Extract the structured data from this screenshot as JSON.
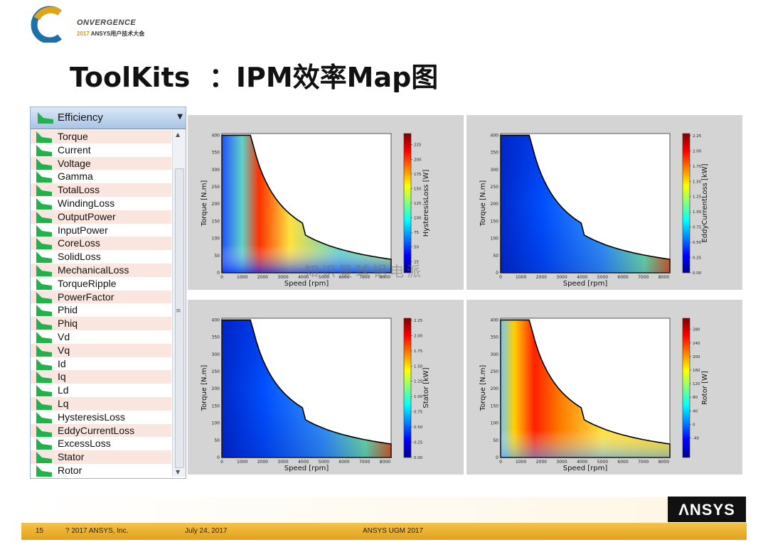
{
  "logo": {
    "name": "ONVERGENCE",
    "sub_year": "2017",
    "sub_text": " ANSYS用户技术大会"
  },
  "title": "ToolKits  ：IPM效率Map图",
  "dropdown": {
    "selected": "Efficiency",
    "items": [
      "Torque",
      "Current",
      "Voltage",
      "Gamma",
      "TotalLoss",
      "WindingLoss",
      "OutputPower",
      "InputPower",
      "CoreLoss",
      "SolidLoss",
      "MechanicalLoss",
      "TorqueRipple",
      "PowerFactor",
      "Phid",
      "Phiq",
      "Vd",
      "Vq",
      "Id",
      "Iq",
      "Ld",
      "Lq",
      "HysteresisLoss",
      "EddyCurrentLoss",
      "ExcessLoss",
      "Stator",
      "Rotor"
    ]
  },
  "plots": [
    {
      "ylabel": "Torque [N.m]",
      "xlabel": "Speed [rpm]",
      "cbar_label": "HysteresisLoss [W]",
      "xticks": [
        "0",
        "1000",
        "2000",
        "3000",
        "4000",
        "5000",
        "6000",
        "7000",
        "8000"
      ],
      "yticks": [
        "0",
        "50",
        "100",
        "150",
        "200",
        "250",
        "300",
        "350",
        "400"
      ],
      "cbar_ticks": [
        "25",
        "50",
        "75",
        "100",
        "125",
        "150",
        "175",
        "200",
        "225"
      ]
    },
    {
      "ylabel": "Torque [N.m]",
      "xlabel": "Speed [rpm]",
      "cbar_label": "EddyCurrentLoss [kW]",
      "xticks": [
        "0",
        "1000",
        "2000",
        "3000",
        "4000",
        "5000",
        "6000",
        "7000",
        "8000"
      ],
      "yticks": [
        "0",
        "50",
        "100",
        "150",
        "200",
        "250",
        "300",
        "350",
        "400"
      ],
      "cbar_ticks": [
        "0.00",
        "0.25",
        "0.50",
        "0.75",
        "1.00",
        "1.25",
        "1.50",
        "1.75",
        "2.00",
        "2.25"
      ]
    },
    {
      "ylabel": "Torque [N.m]",
      "xlabel": "Speed [rpm]",
      "cbar_label": "Stator [kW]",
      "xticks": [
        "0",
        "1000",
        "2000",
        "3000",
        "4000",
        "5000",
        "6000",
        "7000",
        "8000"
      ],
      "yticks": [
        "0",
        "50",
        "100",
        "150",
        "200",
        "250",
        "300",
        "350",
        "400"
      ],
      "cbar_ticks": [
        "0.00",
        "0.25",
        "0.50",
        "0.75",
        "1.00",
        "1.25",
        "1.50",
        "1.75",
        "2.00",
        "2.25"
      ]
    },
    {
      "ylabel": "Torque [N.m]",
      "xlabel": "Speed [rpm]",
      "cbar_label": "Rotor [W]",
      "xticks": [
        "0",
        "1000",
        "2000",
        "3000",
        "4000",
        "5000",
        "6000",
        "7000",
        "8000"
      ],
      "yticks": [
        "0",
        "50",
        "100",
        "150",
        "200",
        "250",
        "300",
        "350",
        "400"
      ],
      "cbar_ticks": [
        "-40",
        "0",
        "40",
        "80",
        "120",
        "160",
        "200",
        "240",
        "280"
      ]
    }
  ],
  "watermark": "知识星球铝电派",
  "footer": {
    "page": "15",
    "copyright": "? 2017 ANSYS, Inc.",
    "date": "July 24, 2017",
    "event": "ANSYS UGM 2017",
    "brand": "ΛNSYS"
  }
}
